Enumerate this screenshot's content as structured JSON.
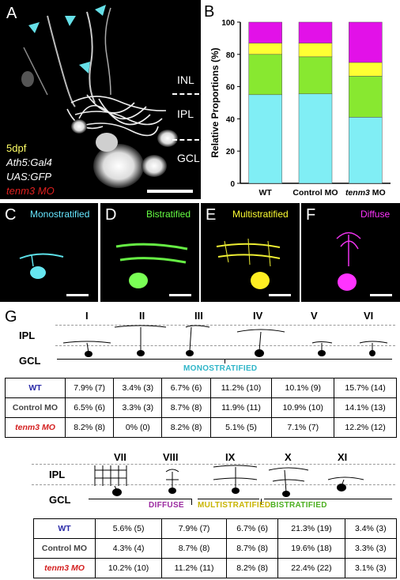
{
  "panels": {
    "a": "A",
    "b": "B",
    "c": "C",
    "d": "D",
    "e": "E",
    "f": "F",
    "g": "G"
  },
  "panel_a": {
    "layers": [
      "INL",
      "IPL",
      "GCL"
    ],
    "caption": [
      "5dpf",
      "Ath5:Gal4",
      "UAS:GFP",
      "tenm3 MO"
    ],
    "caption_colors": [
      "#ffff66",
      "#ffffff",
      "#ffffff",
      "#e0201f"
    ]
  },
  "micro_labels": [
    {
      "text": "Monostratified",
      "color": "#66e6ff"
    },
    {
      "text": "Bistratified",
      "color": "#66ff44"
    },
    {
      "text": "Multistratified",
      "color": "#ffff33"
    },
    {
      "text": "Diffuse",
      "color": "#ff33ff"
    }
  ],
  "chart_data": {
    "type": "bar",
    "stacked": true,
    "categories": [
      "WT",
      "Control MO",
      "tenm3 MO"
    ],
    "ylabel": "Relative Proportions (%)",
    "ylim": [
      0,
      100
    ],
    "yticks": [
      0,
      20,
      40,
      60,
      80,
      100
    ],
    "series": [
      {
        "color": "#80eef5",
        "values": [
          55,
          55.5,
          41
        ]
      },
      {
        "color": "#88e830",
        "values": [
          25,
          23,
          25.5
        ]
      },
      {
        "color": "#ffff33",
        "values": [
          7,
          8.5,
          8.5
        ]
      },
      {
        "color": "#e211e8",
        "values": [
          13,
          13,
          25
        ]
      }
    ]
  },
  "panel_g": {
    "ipl": "IPL",
    "gcl": "GCL",
    "top": {
      "types": [
        "I",
        "II",
        "III",
        "IV",
        "V",
        "VI"
      ],
      "category": "MONOSTRATIFIED",
      "category_color": "#2fb5c8",
      "rows": [
        {
          "label": "WT",
          "color": "#2a2aa8",
          "cells": [
            "7.9% (7)",
            "3.4% (3)",
            "6.7% (6)",
            "11.2% (10)",
            "10.1% (9)",
            "15.7% (14)"
          ]
        },
        {
          "label": "Control MO",
          "color": "#444444",
          "cells": [
            "6.5% (6)",
            "3.3% (3)",
            "8.7% (8)",
            "11.9% (11)",
            "10.9% (10)",
            "14.1% (13)"
          ]
        },
        {
          "label": "tenm3 MO",
          "color": "#d42020",
          "cells": [
            "8.2% (8)",
            "0% (0)",
            "8.2% (8)",
            "5.1% (5)",
            "7.1% (7)",
            "12.2% (12)"
          ]
        }
      ]
    },
    "bottom": {
      "types": [
        "VII",
        "VIII",
        "IX",
        "X",
        "XI"
      ],
      "categories": [
        {
          "text": "DIFFUSE",
          "color": "#9b2aa0"
        },
        {
          "text": "MULTISTRATIFIED",
          "color": "#c8b400"
        },
        {
          "text": "BISTRATIFIED",
          "color": "#4caf20"
        }
      ],
      "rows": [
        {
          "label": "WT",
          "color": "#2a2aa8",
          "cells": [
            "5.6% (5)",
            "7.9% (7)",
            "6.7% (6)",
            "21.3% (19)",
            "3.4% (3)"
          ]
        },
        {
          "label": "Control MO",
          "color": "#444444",
          "cells": [
            "4.3% (4)",
            "8.7% (8)",
            "8.7% (8)",
            "19.6% (18)",
            "3.3% (3)"
          ]
        },
        {
          "label": "tenm3 MO",
          "color": "#d42020",
          "cells": [
            "10.2% (10)",
            "11.2% (11)",
            "8.2% (8)",
            "22.4% (22)",
            "3.1% (3)"
          ]
        }
      ]
    }
  }
}
